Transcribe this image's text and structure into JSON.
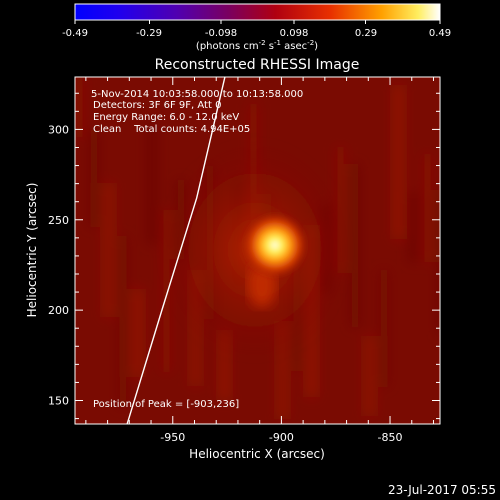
{
  "colorbar": {
    "ticks": [
      "-0.49",
      "-0.29",
      "-0.098",
      "0.098",
      "0.29",
      "0.49"
    ],
    "tick_values": [
      -0.49,
      -0.29,
      -0.098,
      0.098,
      0.29,
      0.49
    ],
    "range": [
      -0.49,
      0.49
    ],
    "unit_prefix": "(photons cm",
    "unit_exp1": "-2",
    "unit_mid": " s",
    "unit_exp2": "-1",
    "unit_mid2": " asec",
    "unit_exp3": "-2",
    "unit_suffix": ")"
  },
  "title": "Reconstructed RHESSI Image",
  "info": {
    "line1": "5-Nov-2014 10:03:58.000 to 10:13:58.000",
    "line2": "Detectors: 3F 6F 9F, Att 0",
    "line3": "Energy Range: 6.0 - 12.0 keV",
    "line4": "Clean    Total counts: 4.94E+05",
    "peak": "Position of Peak = [-903,236]"
  },
  "footer_timestamp": "23-Jul-2017 05:55",
  "chart_data": {
    "type": "heatmap",
    "title": "Reconstructed RHESSI Image",
    "xlabel": "Heliocentric X (arcsec)",
    "ylabel": "Heliocentric Y (arcsec)",
    "xlim": [
      -995,
      -827
    ],
    "ylim": [
      137,
      329
    ],
    "x_ticks": [
      -950,
      -900,
      -850
    ],
    "x_tick_labels": [
      "-950",
      "-900",
      "-850"
    ],
    "y_ticks": [
      150,
      200,
      250,
      300
    ],
    "y_tick_labels": [
      "150",
      "200",
      "250",
      "300"
    ],
    "peak": [
      -903,
      236
    ],
    "colormap": "hot",
    "limb_curve": [
      [
        -971,
        137
      ],
      [
        -955,
        200
      ],
      [
        -939,
        262
      ],
      [
        -926,
        329
      ]
    ]
  },
  "colors": {
    "background": "#000000",
    "image_base": "#7a0b02",
    "peak": "#ffffd0",
    "limb": "#ffffff"
  }
}
